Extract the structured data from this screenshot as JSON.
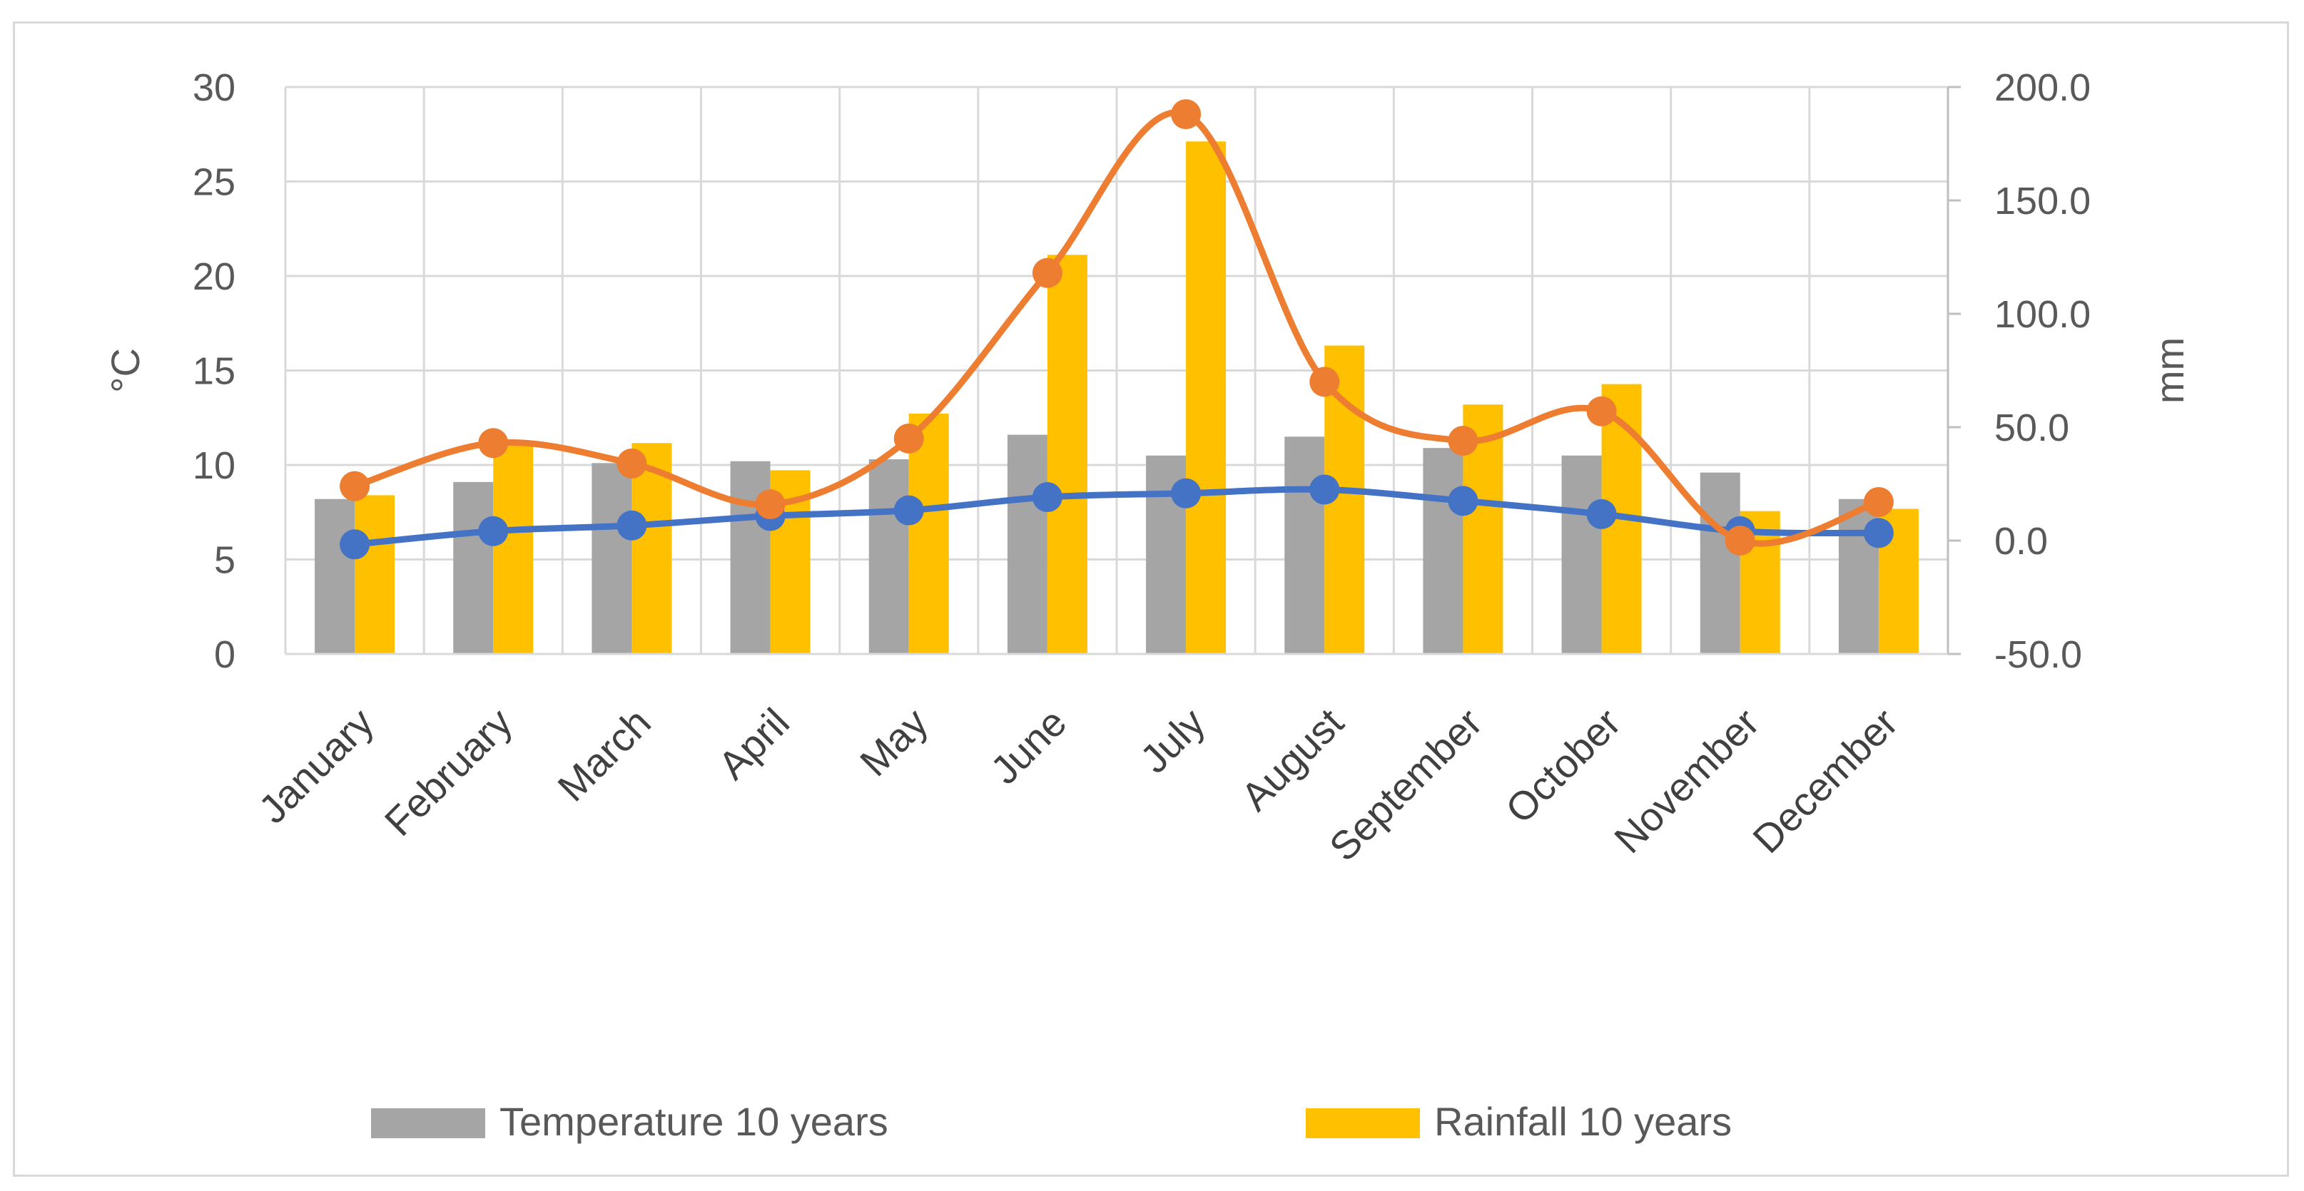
{
  "chart_data": {
    "type": "bar",
    "categories": [
      "January",
      "February",
      "March",
      "April",
      "May",
      "June",
      "July",
      "August",
      "September",
      "October",
      "November",
      "December"
    ],
    "series": [
      {
        "name": "Temperature 10 years",
        "kind": "bar",
        "axis": "left",
        "color": "#a5a5a5",
        "values": [
          8.2,
          9.1,
          10.1,
          10.2,
          10.3,
          11.6,
          10.5,
          11.5,
          10.9,
          10.5,
          9.6,
          8.2
        ]
      },
      {
        "name": "Rainfall 10 years",
        "kind": "bar",
        "axis": "right",
        "color": "#ffc000",
        "values": [
          20,
          43,
          43,
          31,
          56,
          126,
          176,
          86,
          60,
          69,
          13,
          14
        ]
      },
      {
        "name": "",
        "kind": "line",
        "axis": "left",
        "color": "#4472c4",
        "values": [
          5.8,
          6.5,
          6.8,
          7.3,
          7.6,
          8.3,
          8.5,
          8.7,
          8.1,
          7.4,
          6.5,
          6.4
        ]
      },
      {
        "name": "",
        "kind": "line",
        "axis": "right",
        "color": "#ed7d31",
        "values": [
          24,
          43,
          34,
          16,
          45,
          118,
          188,
          70,
          44,
          57,
          0,
          17
        ]
      }
    ],
    "yaxis_left": {
      "label": "°C",
      "ylim": [
        0,
        30
      ],
      "ticks": [
        "0",
        "5",
        "10",
        "15",
        "20",
        "25",
        "30"
      ]
    },
    "yaxis_right": {
      "label": "mm",
      "ylim": [
        -50,
        200
      ],
      "ticks": [
        "-50.0",
        "0.0",
        "50.0",
        "100.0",
        "150.0",
        "200.0"
      ]
    },
    "legend": [
      "Temperature 10 years",
      "Rainfall 10 years"
    ],
    "legend_position": "bottom",
    "grid": true
  }
}
